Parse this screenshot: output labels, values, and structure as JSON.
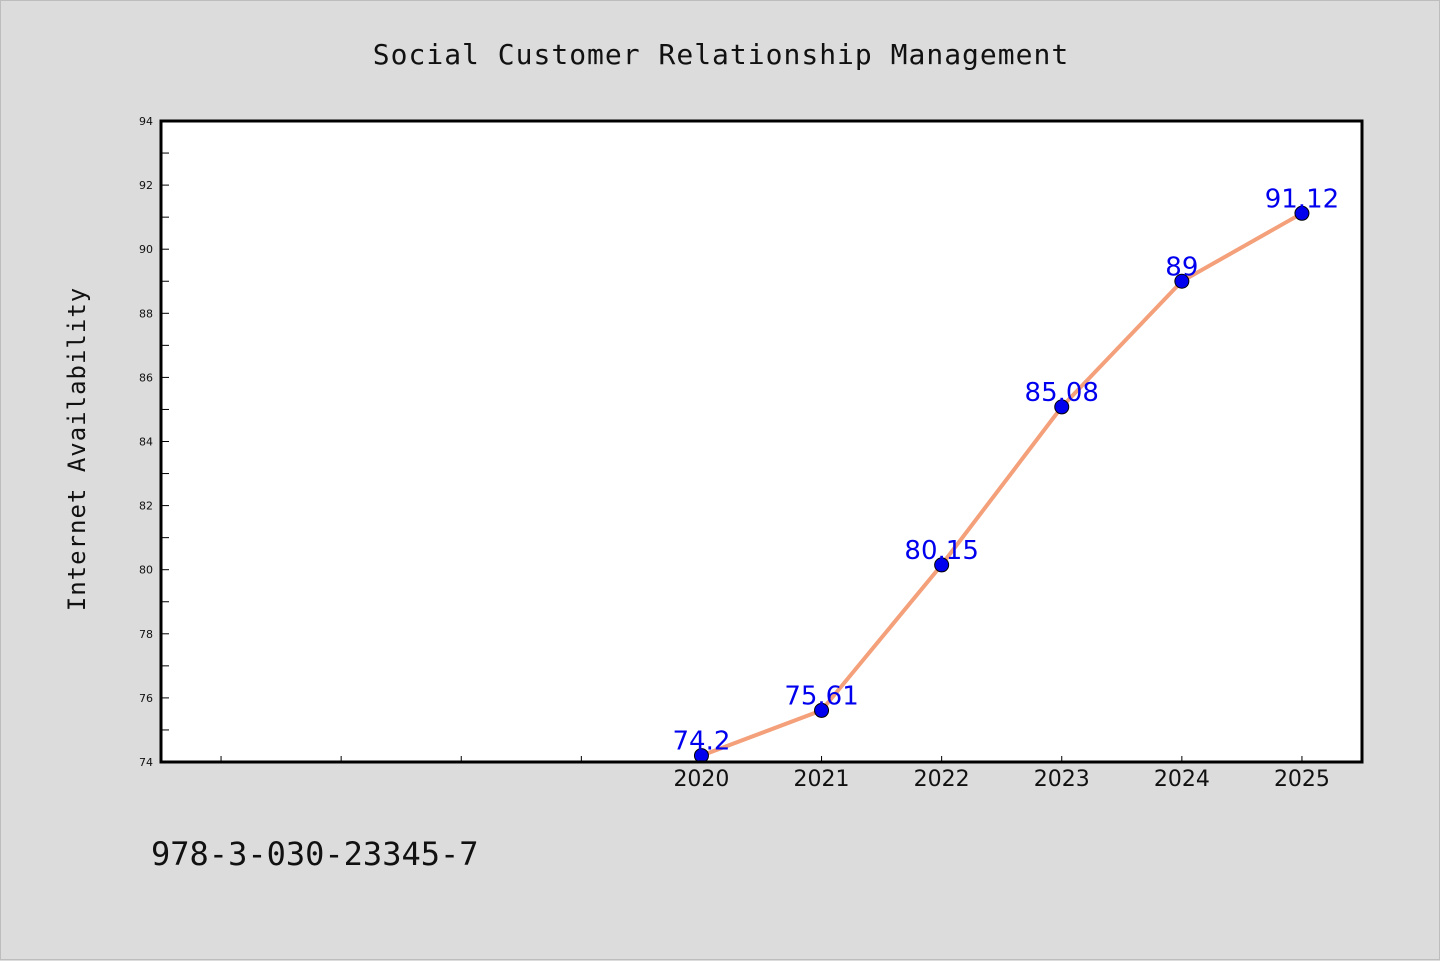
{
  "footer_text": "978-3-030-23345-7",
  "colors": {
    "background": "#dcdcdc",
    "plot_background": "#ffffff",
    "line": "#f4a07a",
    "marker": "#0000ee",
    "data_label": "#0000ee"
  },
  "chart_data": {
    "type": "line",
    "title": "Social Customer Relationship Management",
    "xlabel": "",
    "ylabel": "Internet Availability",
    "categories": [
      "2020",
      "2021",
      "2022",
      "2023",
      "2024",
      "2025"
    ],
    "x_slots_total": 10,
    "x_offset": 4,
    "series": [
      {
        "values": [
          74.2,
          75.61,
          80.15,
          85.08,
          89,
          91.12
        ],
        "labels": [
          "74.2",
          "75.61",
          "80.15",
          "85.08",
          "89",
          "91.12"
        ]
      }
    ],
    "ylim": [
      74,
      94
    ],
    "yticks": [
      "74",
      "76",
      "78",
      "80",
      "82",
      "84",
      "86",
      "88",
      "90",
      "92",
      "94"
    ],
    "grid": false,
    "legend": "none"
  }
}
